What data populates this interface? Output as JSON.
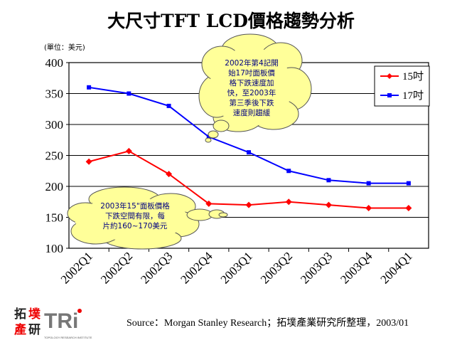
{
  "chart_data": {
    "type": "line",
    "title": "大尺寸TFT LCD價格趨勢分析",
    "unit_label": "(單位：美元)",
    "categories": [
      "2002Q1",
      "2002Q2",
      "2002Q3",
      "2002Q4",
      "2003Q1",
      "2003Q2",
      "2003Q3",
      "2003Q4",
      "2004Q1"
    ],
    "yticks": [
      "100",
      "150",
      "200",
      "250",
      "300",
      "350",
      "400"
    ],
    "ylim": [
      100,
      400
    ],
    "grid": true,
    "legend_position": "top-right",
    "series": [
      {
        "name": "15吋",
        "color": "#ff0000",
        "marker": "diamond",
        "values": [
          240,
          257,
          220,
          172,
          170,
          175,
          170,
          165,
          165
        ]
      },
      {
        "name": "17吋",
        "color": "#0000ff",
        "marker": "square",
        "values": [
          360,
          350,
          330,
          280,
          255,
          225,
          210,
          205,
          205
        ]
      }
    ],
    "annotations": [
      {
        "lines": [
          "2002年第4記開",
          "始17吋面板價",
          "格下跌速度加",
          "快，至2003年",
          "第三季後下跌",
          "速度則趨緩"
        ]
      },
      {
        "lines": [
          "2003年15\"面板價格",
          "下跌空間有限，每",
          "片約160~170美元"
        ]
      }
    ]
  },
  "footer": {
    "logo_text": "拓墣產研",
    "logo_brand": "TRi",
    "logo_subtitle": "TOPOLOGY RESEARCH INSTITUTE",
    "source": "Source：Morgan Stanley Research；拓墣產業研究所整理，2003/01"
  }
}
